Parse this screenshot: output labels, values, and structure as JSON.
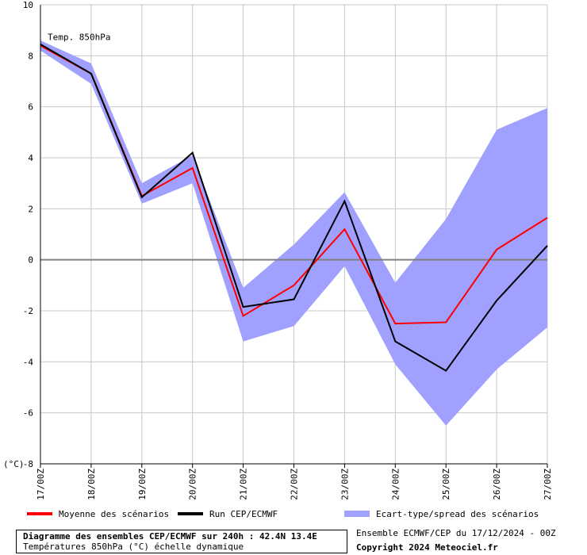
{
  "chart_data": {
    "type": "line",
    "annotation": "Temp. 850hPa",
    "ylabel": "(°C)",
    "ylim": [
      -8,
      10
    ],
    "yticks": [
      -8,
      -6,
      -4,
      -2,
      0,
      2,
      4,
      6,
      8,
      10
    ],
    "categories": [
      "17/00Z",
      "18/00Z",
      "19/00Z",
      "20/00Z",
      "21/00Z",
      "22/00Z",
      "23/00Z",
      "24/00Z",
      "25/00Z",
      "26/00Z",
      "27/00Z"
    ],
    "grid": true,
    "series": [
      {
        "name": "Moyenne des scénarios",
        "color": "#ff0000",
        "values": [
          8.4,
          7.3,
          2.5,
          3.6,
          -2.2,
          -1.0,
          1.2,
          -2.5,
          -2.45,
          0.4,
          1.65
        ]
      },
      {
        "name": "Run CEP/ECMWF",
        "color": "#000000",
        "values": [
          8.45,
          7.3,
          2.45,
          4.2,
          -1.85,
          -1.55,
          2.3,
          -3.2,
          -4.35,
          -1.6,
          0.55
        ]
      }
    ],
    "band": {
      "name": "Ecart-type/spread des scénarios",
      "color": "#a0a0ff",
      "upper": [
        8.6,
        7.7,
        3.0,
        4.1,
        -1.1,
        0.6,
        2.65,
        -0.9,
        1.6,
        5.1,
        5.95
      ],
      "lower": [
        8.2,
        6.9,
        2.2,
        3.0,
        -3.2,
        -2.6,
        -0.25,
        -4.1,
        -6.5,
        -4.3,
        -2.65
      ]
    }
  },
  "legend": {
    "mean_label": "Moyenne des scénarios",
    "run_label": "Run CEP/ECMWF",
    "spread_label": "Ecart-type/spread des scénarios"
  },
  "footer": {
    "title": "Diagramme des ensembles CEP/ECMWF sur 240h : 42.4N 13.4E",
    "subtitle": "Températures 850hPa (°C) échelle dynamique",
    "run_info": "Ensemble ECMWF/CEP du 17/12/2024 - 00Z",
    "copyright": "Copyright 2024 Meteociel.fr"
  }
}
